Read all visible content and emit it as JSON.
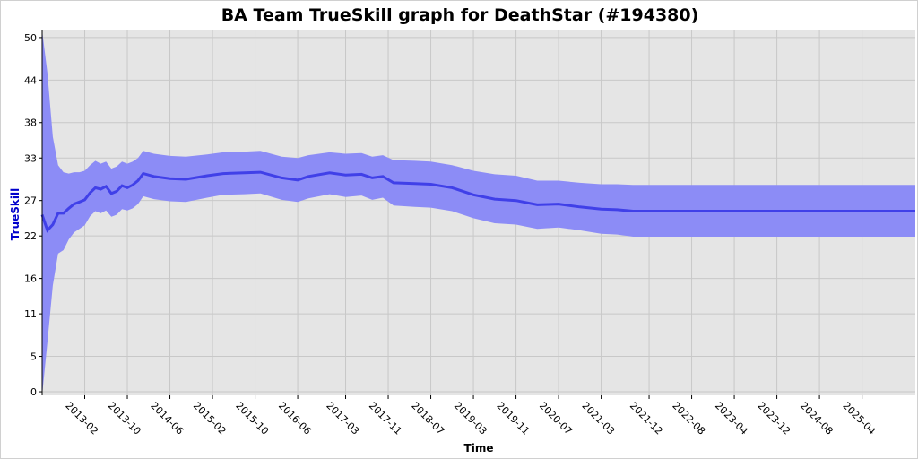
{
  "chart_data": {
    "type": "area",
    "title": "BA Team TrueSkill graph for DeathStar (#194380)",
    "xlabel": "Time",
    "ylabel": "TrueSkill",
    "y_ticks": [
      0,
      5,
      11,
      16,
      22,
      27,
      33,
      38,
      44,
      50
    ],
    "ylim": [
      -0.5,
      51
    ],
    "x_ticks": [
      "2013-02",
      "2013-10",
      "2014-06",
      "2015-02",
      "2015-10",
      "2016-06",
      "2017-03",
      "2017-11",
      "2018-07",
      "2019-03",
      "2019-11",
      "2020-07",
      "2021-03",
      "2021-12",
      "2022-08",
      "2023-04",
      "2023-12",
      "2024-08",
      "2025-04"
    ],
    "x_range": [
      "2012-06",
      "2026-02"
    ],
    "grid": true,
    "legend": "none",
    "colors": {
      "line": "#4040e8",
      "band": "#8c8cf6",
      "plot_bg": "#e5e5e5",
      "grid": "#c8c8c8",
      "ylabel": "#0000cc"
    },
    "series": [
      {
        "role": "mean",
        "points": [
          [
            "2012-06",
            25.0
          ],
          [
            "2012-07",
            22.8
          ],
          [
            "2012-08",
            23.6
          ],
          [
            "2012-09",
            25.2
          ],
          [
            "2012-10",
            25.2
          ],
          [
            "2012-11",
            25.9
          ],
          [
            "2012-12",
            26.5
          ],
          [
            "2013-01",
            26.8
          ],
          [
            "2013-02",
            27.1
          ],
          [
            "2013-03",
            28.1
          ],
          [
            "2013-04",
            28.8
          ],
          [
            "2013-05",
            28.6
          ],
          [
            "2013-06",
            29.0
          ],
          [
            "2013-07",
            28.0
          ],
          [
            "2013-08",
            28.3
          ],
          [
            "2013-09",
            29.1
          ],
          [
            "2013-10",
            28.8
          ],
          [
            "2013-11",
            29.2
          ],
          [
            "2013-12",
            29.8
          ],
          [
            "2014-01",
            30.8
          ],
          [
            "2014-03",
            30.4
          ],
          [
            "2014-06",
            30.1
          ],
          [
            "2014-09",
            30.0
          ],
          [
            "2015-01",
            30.5
          ],
          [
            "2015-04",
            30.8
          ],
          [
            "2015-08",
            30.9
          ],
          [
            "2015-11",
            31.0
          ],
          [
            "2016-03",
            30.2
          ],
          [
            "2016-06",
            29.9
          ],
          [
            "2016-08",
            30.4
          ],
          [
            "2016-12",
            30.9
          ],
          [
            "2017-03",
            30.6
          ],
          [
            "2017-06",
            30.7
          ],
          [
            "2017-08",
            30.2
          ],
          [
            "2017-10",
            30.4
          ],
          [
            "2017-12",
            29.5
          ],
          [
            "2018-04",
            29.4
          ],
          [
            "2018-07",
            29.3
          ],
          [
            "2018-11",
            28.8
          ],
          [
            "2019-03",
            27.8
          ],
          [
            "2019-07",
            27.2
          ],
          [
            "2019-11",
            27.0
          ],
          [
            "2020-03",
            26.4
          ],
          [
            "2020-07",
            26.5
          ],
          [
            "2020-11",
            26.1
          ],
          [
            "2021-03",
            25.8
          ],
          [
            "2021-06",
            25.7
          ],
          [
            "2021-09",
            25.5
          ],
          [
            "2022-08",
            25.5
          ],
          [
            "2023-12",
            25.5
          ],
          [
            "2025-04",
            25.5
          ],
          [
            "2026-02",
            25.5
          ]
        ]
      },
      {
        "role": "upper_bound",
        "points": [
          [
            "2012-06",
            51.0
          ],
          [
            "2012-07",
            45.0
          ],
          [
            "2012-08",
            36.0
          ],
          [
            "2012-09",
            32.0
          ],
          [
            "2012-10",
            31.0
          ],
          [
            "2012-11",
            30.8
          ],
          [
            "2012-12",
            31.0
          ],
          [
            "2013-01",
            31.0
          ],
          [
            "2013-02",
            31.2
          ],
          [
            "2013-03",
            32.0
          ],
          [
            "2013-04",
            32.6
          ],
          [
            "2013-05",
            32.2
          ],
          [
            "2013-06",
            32.5
          ],
          [
            "2013-07",
            31.5
          ],
          [
            "2013-08",
            31.8
          ],
          [
            "2013-09",
            32.5
          ],
          [
            "2013-10",
            32.2
          ],
          [
            "2013-11",
            32.5
          ],
          [
            "2013-12",
            33.0
          ],
          [
            "2014-01",
            34.0
          ],
          [
            "2014-03",
            33.6
          ],
          [
            "2014-06",
            33.3
          ],
          [
            "2014-09",
            33.2
          ],
          [
            "2015-01",
            33.5
          ],
          [
            "2015-04",
            33.8
          ],
          [
            "2015-08",
            33.9
          ],
          [
            "2015-11",
            34.0
          ],
          [
            "2016-03",
            33.2
          ],
          [
            "2016-06",
            33.0
          ],
          [
            "2016-08",
            33.4
          ],
          [
            "2016-12",
            33.8
          ],
          [
            "2017-03",
            33.6
          ],
          [
            "2017-06",
            33.7
          ],
          [
            "2017-08",
            33.2
          ],
          [
            "2017-10",
            33.4
          ],
          [
            "2017-12",
            32.7
          ],
          [
            "2018-04",
            32.6
          ],
          [
            "2018-07",
            32.5
          ],
          [
            "2018-11",
            32.0
          ],
          [
            "2019-03",
            31.2
          ],
          [
            "2019-07",
            30.7
          ],
          [
            "2019-11",
            30.5
          ],
          [
            "2020-03",
            29.8
          ],
          [
            "2020-07",
            29.8
          ],
          [
            "2020-11",
            29.5
          ],
          [
            "2021-03",
            29.3
          ],
          [
            "2021-06",
            29.3
          ],
          [
            "2021-09",
            29.2
          ],
          [
            "2022-08",
            29.2
          ],
          [
            "2023-12",
            29.2
          ],
          [
            "2025-04",
            29.2
          ],
          [
            "2026-02",
            29.2
          ]
        ]
      },
      {
        "role": "lower_bound",
        "points": [
          [
            "2012-06",
            -0.5
          ],
          [
            "2012-07",
            7.0
          ],
          [
            "2012-08",
            15.0
          ],
          [
            "2012-09",
            19.5
          ],
          [
            "2012-10",
            20.0
          ],
          [
            "2012-11",
            21.5
          ],
          [
            "2012-12",
            22.5
          ],
          [
            "2013-01",
            23.0
          ],
          [
            "2013-02",
            23.5
          ],
          [
            "2013-03",
            24.8
          ],
          [
            "2013-04",
            25.5
          ],
          [
            "2013-05",
            25.2
          ],
          [
            "2013-06",
            25.6
          ],
          [
            "2013-07",
            24.7
          ],
          [
            "2013-08",
            25.0
          ],
          [
            "2013-09",
            25.8
          ],
          [
            "2013-10",
            25.6
          ],
          [
            "2013-11",
            25.9
          ],
          [
            "2013-12",
            26.5
          ],
          [
            "2014-01",
            27.6
          ],
          [
            "2014-03",
            27.2
          ],
          [
            "2014-06",
            26.9
          ],
          [
            "2014-09",
            26.8
          ],
          [
            "2015-01",
            27.4
          ],
          [
            "2015-04",
            27.8
          ],
          [
            "2015-08",
            27.9
          ],
          [
            "2015-11",
            28.0
          ],
          [
            "2016-03",
            27.1
          ],
          [
            "2016-06",
            26.8
          ],
          [
            "2016-08",
            27.3
          ],
          [
            "2016-12",
            27.9
          ],
          [
            "2017-03",
            27.5
          ],
          [
            "2017-06",
            27.7
          ],
          [
            "2017-08",
            27.1
          ],
          [
            "2017-10",
            27.4
          ],
          [
            "2017-12",
            26.3
          ],
          [
            "2018-04",
            26.1
          ],
          [
            "2018-07",
            26.0
          ],
          [
            "2018-11",
            25.5
          ],
          [
            "2019-03",
            24.5
          ],
          [
            "2019-07",
            23.8
          ],
          [
            "2019-11",
            23.6
          ],
          [
            "2020-03",
            23.0
          ],
          [
            "2020-07",
            23.2
          ],
          [
            "2020-11",
            22.8
          ],
          [
            "2021-03",
            22.3
          ],
          [
            "2021-06",
            22.2
          ],
          [
            "2021-09",
            21.9
          ],
          [
            "2022-08",
            21.9
          ],
          [
            "2023-12",
            21.9
          ],
          [
            "2025-04",
            21.9
          ],
          [
            "2026-02",
            21.9
          ]
        ]
      }
    ]
  }
}
